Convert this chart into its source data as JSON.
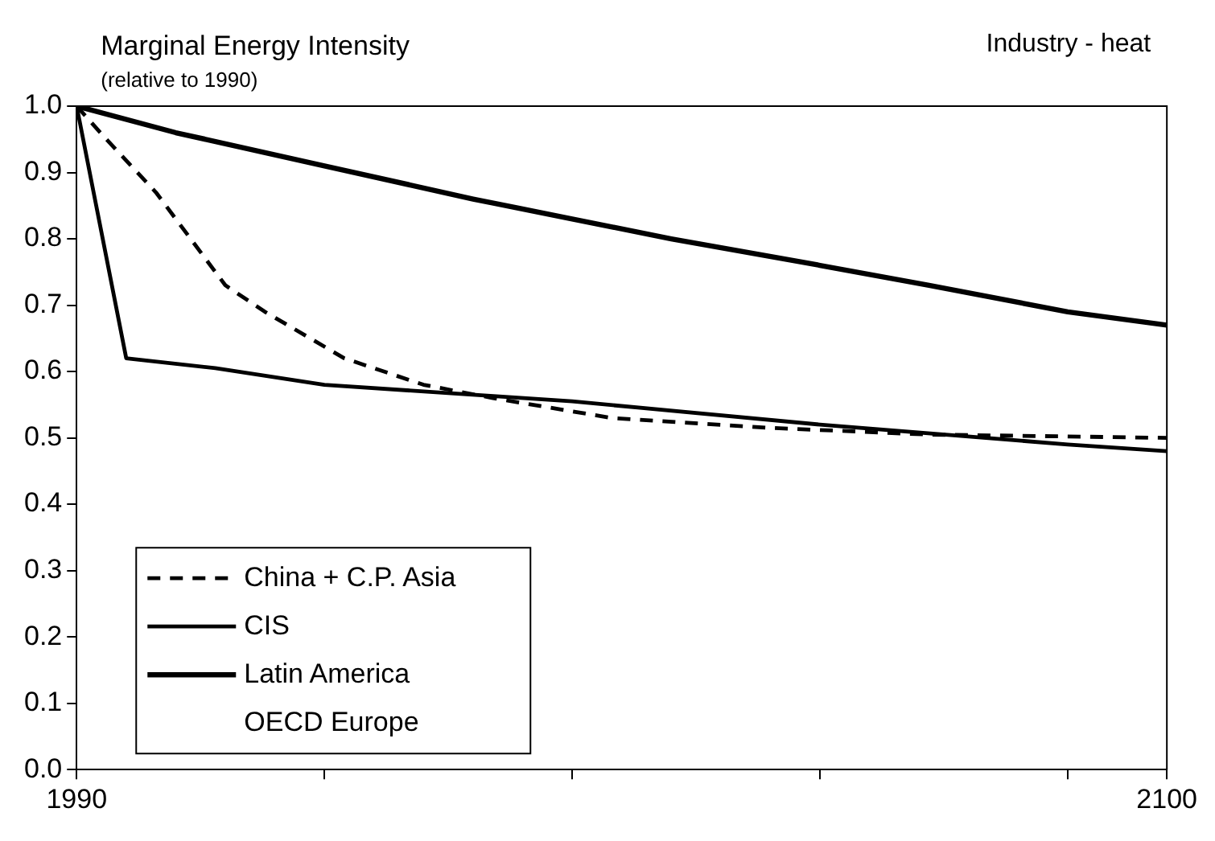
{
  "chart_data": {
    "type": "line",
    "title": "Marginal Energy Intensity",
    "subtitle": "(relative to 1990)",
    "annotations": [
      "Industry - heat"
    ],
    "xlim": [
      1990,
      2100
    ],
    "xticks": [
      1990,
      {
        "value": 2015,
        "label": null
      },
      {
        "value": 2040,
        "label": null
      },
      {
        "value": 2065,
        "label": null
      },
      {
        "value": 2090,
        "label": null
      },
      2100
    ],
    "ylim": [
      0,
      1
    ],
    "yticks": [
      {
        "value": 0,
        "label": "0.0"
      },
      {
        "value": 0.1,
        "label": "0.1"
      },
      {
        "value": 0.2,
        "label": "0.2"
      },
      {
        "value": 0.3,
        "label": "0.3"
      },
      {
        "value": 0.4,
        "label": "0.4"
      },
      {
        "value": 0.5,
        "label": "0.5"
      },
      {
        "value": 0.6,
        "label": "0.6"
      },
      {
        "value": 0.7,
        "label": "0.7"
      },
      {
        "value": 0.8,
        "label": "0.8"
      },
      {
        "value": 0.9,
        "label": "0.9"
      },
      {
        "value": 1,
        "label": "1.0"
      }
    ],
    "grid": false,
    "legend": "bottom left",
    "marker": "none",
    "series": [
      {
        "name": "China + C.P. Asia",
        "color": "#000000",
        "line_style": "dashed",
        "x": [
          1990,
          1993,
          1998,
          2005,
          2009,
          2017,
          2025,
          2032,
          2044,
          2060,
          2076,
          2100
        ],
        "values": [
          1.0,
          0.95,
          0.87,
          0.73,
          0.69,
          0.62,
          0.58,
          0.56,
          0.53,
          0.515,
          0.505,
          0.5
        ]
      },
      {
        "name": "CIS",
        "color": "#000000",
        "line_style": "solid",
        "x": [
          1990,
          1995,
          2004,
          2015,
          2040,
          2065,
          2090,
          2100
        ],
        "values": [
          1.0,
          0.62,
          0.605,
          0.58,
          0.555,
          0.52,
          0.49,
          0.48
        ]
      },
      {
        "name": "Latin America",
        "color": "#000000",
        "line_style": "solid",
        "x": [
          1990,
          2000,
          2015,
          2030,
          2040,
          2050,
          2065,
          2076,
          2090,
          2100
        ],
        "values": [
          1.0,
          0.96,
          0.91,
          0.86,
          0.83,
          0.8,
          0.76,
          0.73,
          0.69,
          0.67
        ]
      },
      {
        "name": "OECD Europe"
      }
    ]
  }
}
